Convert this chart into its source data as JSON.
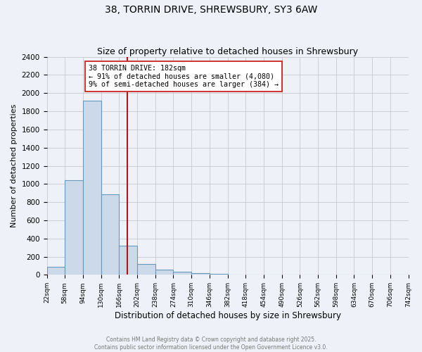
{
  "title": "38, TORRIN DRIVE, SHREWSBURY, SY3 6AW",
  "subtitle": "Size of property relative to detached houses in Shrewsbury",
  "xlabel": "Distribution of detached houses by size in Shrewsbury",
  "ylabel": "Number of detached properties",
  "bar_edges": [
    22,
    58,
    94,
    130,
    166,
    202,
    238,
    274,
    310,
    346,
    382,
    418,
    454,
    490,
    526,
    562,
    598,
    634,
    670,
    706,
    742
  ],
  "bar_heights": [
    90,
    1040,
    1920,
    890,
    320,
    120,
    55,
    35,
    15,
    8,
    5,
    2,
    2,
    1,
    1,
    0,
    0,
    0,
    0,
    0
  ],
  "bar_color": "#ccd9e8",
  "bar_edgecolor": "#6699bb",
  "vline_x": 182,
  "vline_color": "#bb1111",
  "annotation_title": "38 TORRIN DRIVE: 182sqm",
  "annotation_line1": "← 91% of detached houses are smaller (4,080)",
  "annotation_line2": "9% of semi-detached houses are larger (384) →",
  "ylim": [
    0,
    2400
  ],
  "yticks": [
    0,
    200,
    400,
    600,
    800,
    1000,
    1200,
    1400,
    1600,
    1800,
    2000,
    2200,
    2400
  ],
  "grid_color": "#c8c8d0",
  "bg_color": "#eef2f8",
  "title_fontsize": 10,
  "subtitle_fontsize": 9,
  "footer1": "Contains HM Land Registry data © Crown copyright and database right 2025.",
  "footer2": "Contains public sector information licensed under the Open Government Licence v3.0."
}
